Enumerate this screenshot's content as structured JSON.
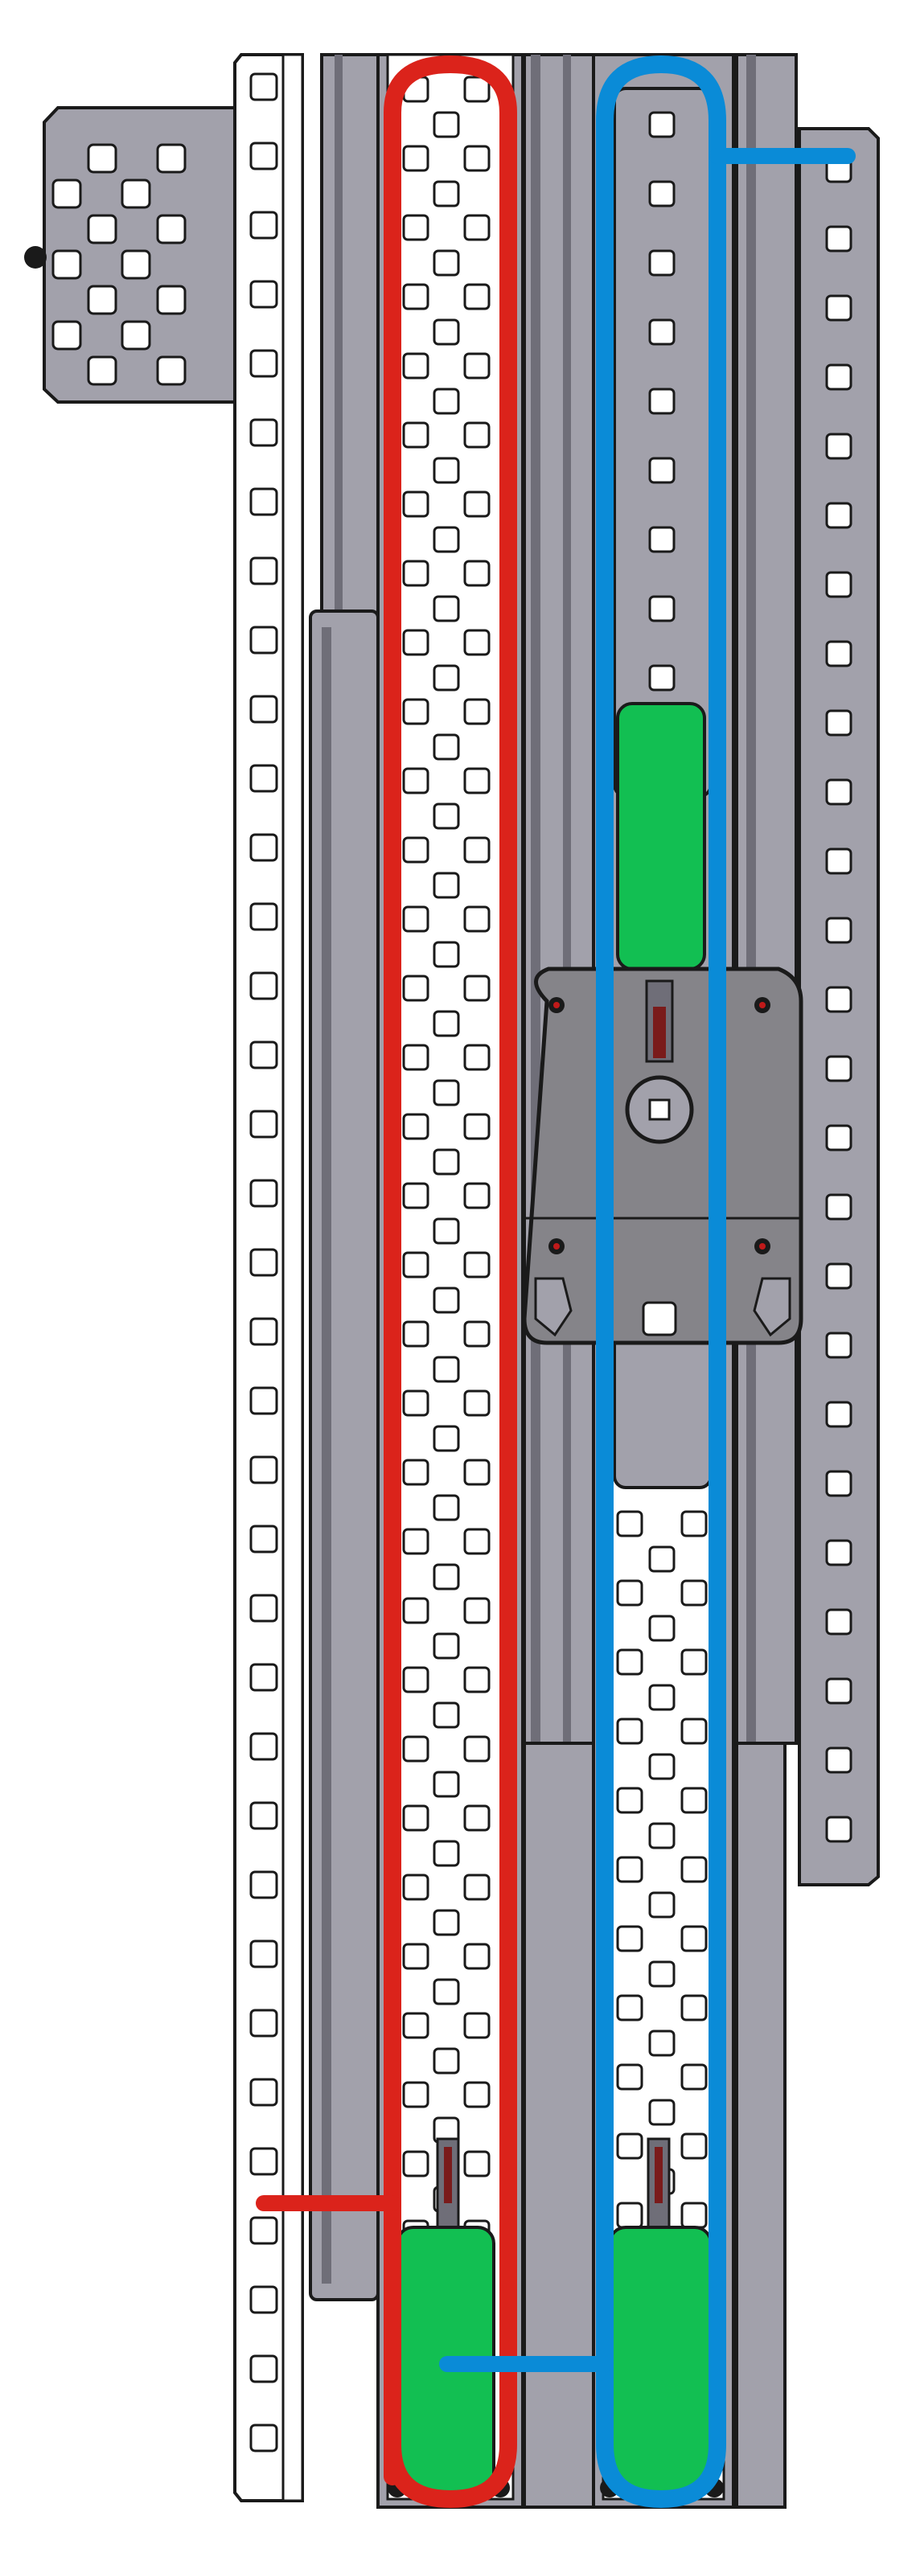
{
  "diagram": {
    "kind": "cascade-lift-string-routing",
    "colors": {
      "background": "#ffffff",
      "metal_gray": "#a2a1ab",
      "metal_dark": "#8a8992",
      "rail_shade": "#6f6e78",
      "outline": "#1a1a1a",
      "white_channel": "#ffffff",
      "gearbox_body": "#858489",
      "pulley_green": "#12bf52",
      "string_red": "#db231b",
      "string_blue": "#0a8bd7",
      "bearing_red": "#c01a1a"
    },
    "parts": {
      "left_plate": "perforated-gusset-plate",
      "left_rail": "outer-flat-bar",
      "stage1_channel": "stage-1-lift-channel",
      "stage2_channel": "stage-2-lift-channel",
      "right_rail": "right-flat-bar",
      "gearbox": "center-gearbox-motor-mount",
      "string_red": "stage-1-string",
      "string_blue": "stage-2-string"
    }
  }
}
